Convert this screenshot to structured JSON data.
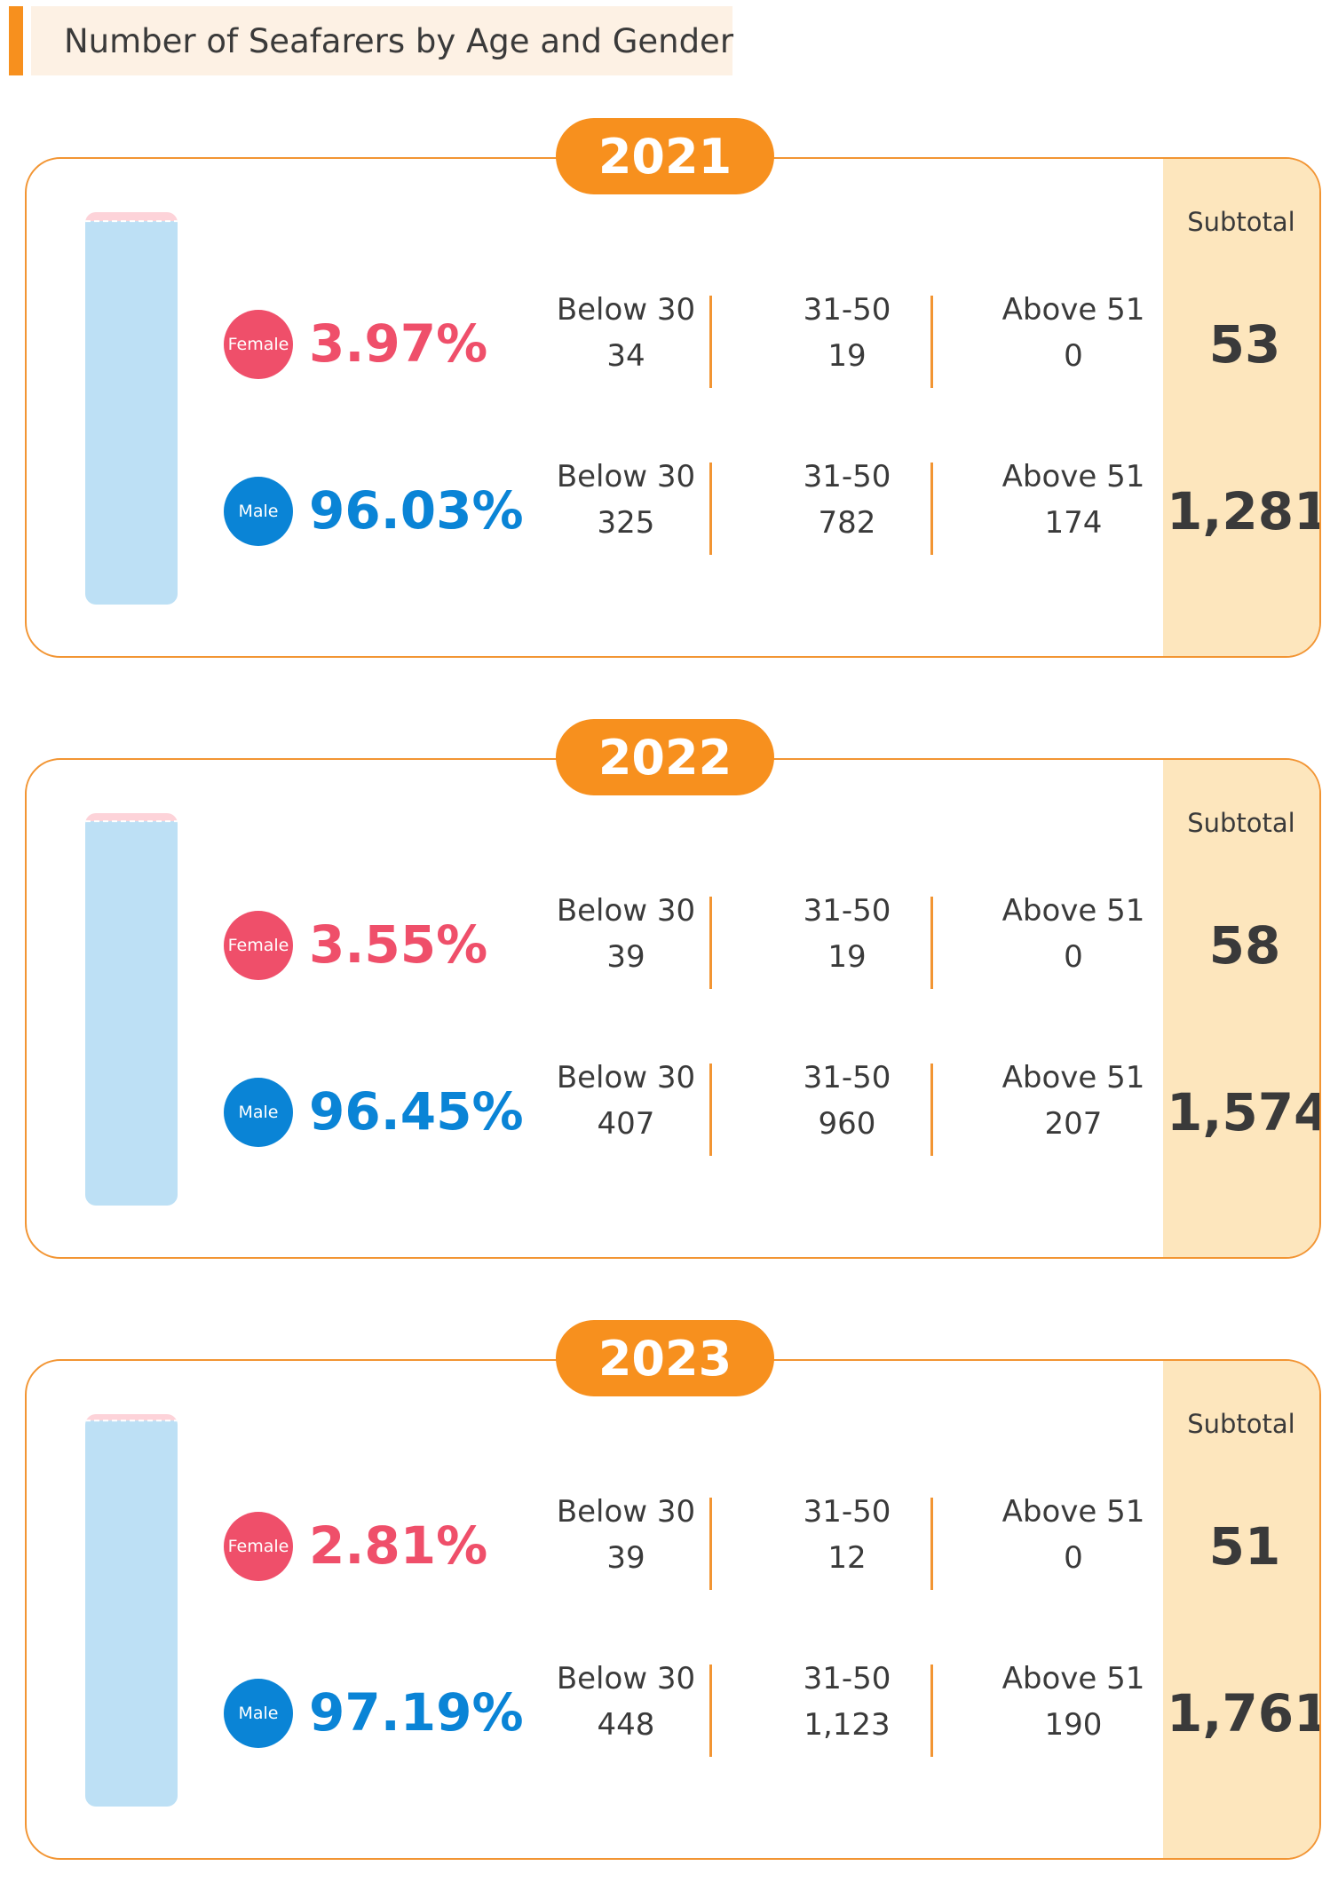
{
  "title": "Number of Seafarers by Age and Gender",
  "subtotal_label": "Subtotal",
  "colors": {
    "accent": "#f7901e",
    "female": "#ef4f6a",
    "male": "#0a84d6",
    "subtotal_bg": "#fde6bd",
    "bar_female": "#fdd3d9",
    "bar_male": "#bde0f5"
  },
  "chart_data": [
    {
      "type": "table",
      "year": "2021",
      "rows": [
        {
          "gender": "Female",
          "percent": "3.97%",
          "share": 0.0397,
          "groups": [
            {
              "label": "Below 30",
              "value": "34"
            },
            {
              "label": "31-50",
              "value": "19"
            },
            {
              "label": "Above 51",
              "value": "0"
            }
          ],
          "subtotal": "53"
        },
        {
          "gender": "Male",
          "percent": "96.03%",
          "share": 0.9603,
          "groups": [
            {
              "label": "Below 30",
              "value": "325"
            },
            {
              "label": "31-50",
              "value": "782"
            },
            {
              "label": "Above 51",
              "value": "174"
            }
          ],
          "subtotal": "1,281"
        }
      ]
    },
    {
      "type": "table",
      "year": "2022",
      "rows": [
        {
          "gender": "Female",
          "percent": "3.55%",
          "share": 0.0355,
          "groups": [
            {
              "label": "Below 30",
              "value": "39"
            },
            {
              "label": "31-50",
              "value": "19"
            },
            {
              "label": "Above 51",
              "value": "0"
            }
          ],
          "subtotal": "58"
        },
        {
          "gender": "Male",
          "percent": "96.45%",
          "share": 0.9645,
          "groups": [
            {
              "label": "Below 30",
              "value": "407"
            },
            {
              "label": "31-50",
              "value": "960"
            },
            {
              "label": "Above 51",
              "value": "207"
            }
          ],
          "subtotal": "1,574"
        }
      ]
    },
    {
      "type": "table",
      "year": "2023",
      "rows": [
        {
          "gender": "Female",
          "percent": "2.81%",
          "share": 0.0281,
          "groups": [
            {
              "label": "Below 30",
              "value": "39"
            },
            {
              "label": "31-50",
              "value": "12"
            },
            {
              "label": "Above 51",
              "value": "0"
            }
          ],
          "subtotal": "51"
        },
        {
          "gender": "Male",
          "percent": "97.19%",
          "share": 0.9719,
          "groups": [
            {
              "label": "Below 30",
              "value": "448"
            },
            {
              "label": "31-50",
              "value": "1,123"
            },
            {
              "label": "Above 51",
              "value": "190"
            }
          ],
          "subtotal": "1,761"
        }
      ]
    }
  ]
}
